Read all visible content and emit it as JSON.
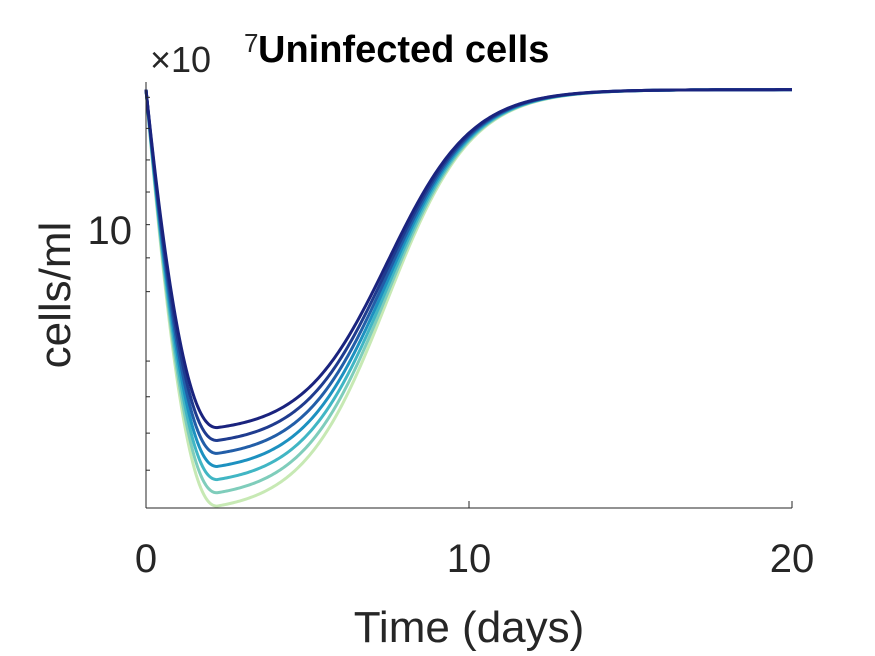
{
  "chart_data": {
    "type": "line",
    "title": "Uninfected cells",
    "xlabel": "Time (days)",
    "ylabel": "cells/ml",
    "y_exponent_prefix": "×10",
    "y_exponent": "7",
    "xlim": [
      0,
      20
    ],
    "ylim": [
      1.0,
      1.25
    ],
    "yscale": "log",
    "xticks": [
      0,
      10,
      20
    ],
    "xtick_labels": [
      "0",
      "10",
      "20"
    ],
    "yticks": [
      10
    ],
    "ytick_labels": [
      "10"
    ],
    "grid": false,
    "legend": "none",
    "series_colors": [
      "#1a237e",
      "#1f3c8f",
      "#225ea8",
      "#1d91c0",
      "#41b6c4",
      "#7fcdbb",
      "#c7e9b4"
    ],
    "min_values": [
      1.043,
      1.036,
      1.029,
      1.022,
      1.015,
      1.008,
      1.001
    ],
    "series": [
      {
        "x": [
          0,
          0.5,
          1,
          1.5,
          2,
          2.5,
          3,
          3.5,
          4,
          5,
          6,
          7,
          8,
          9,
          10,
          11,
          12,
          13,
          14,
          15,
          16,
          18,
          20
        ]
      },
      {
        "x": [
          0,
          0.5,
          1,
          1.5,
          2,
          2.5,
          3,
          3.5,
          4,
          5,
          6,
          7,
          8,
          9,
          10,
          11,
          12,
          13,
          14,
          15,
          16,
          18,
          20
        ]
      },
      {
        "x": [
          0,
          0.5,
          1,
          1.5,
          2,
          2.5,
          3,
          3.5,
          4,
          5,
          6,
          7,
          8,
          9,
          10,
          11,
          12,
          13,
          14,
          15,
          16,
          18,
          20
        ]
      },
      {
        "x": [
          0,
          0.5,
          1,
          1.5,
          2,
          2.5,
          3,
          3.5,
          4,
          5,
          6,
          7,
          8,
          9,
          10,
          11,
          12,
          13,
          14,
          15,
          16,
          18,
          20
        ]
      },
      {
        "x": [
          0,
          0.5,
          1,
          1.5,
          2,
          2.5,
          3,
          3.5,
          4,
          5,
          6,
          7,
          8,
          9,
          10,
          11,
          12,
          13,
          14,
          15,
          16,
          18,
          20
        ]
      },
      {
        "x": [
          0,
          0.5,
          1,
          1.5,
          2,
          2.5,
          3,
          3.5,
          4,
          5,
          6,
          7,
          8,
          9,
          10,
          11,
          12,
          13,
          14,
          15,
          16,
          18,
          20
        ]
      },
      {
        "x": [
          0,
          0.5,
          1,
          1.5,
          2,
          2.5,
          3,
          3.5,
          4,
          5,
          6,
          7,
          8,
          9,
          10,
          11,
          12,
          13,
          14,
          15,
          16,
          18,
          20
        ]
      }
    ]
  }
}
